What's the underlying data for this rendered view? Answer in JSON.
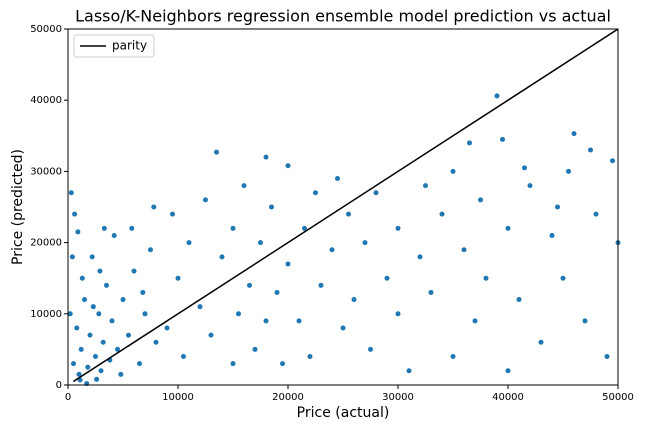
{
  "chart_data": {
    "type": "scatter",
    "title": "Lasso/K-Neighbors regression ensemble model prediction vs actual",
    "x_label": "Price (actual)",
    "y_label": "Price (predicted)",
    "xlim": [
      0,
      50000
    ],
    "ylim": [
      0,
      50000
    ],
    "xticks": [
      0,
      10000,
      20000,
      30000,
      40000,
      50000
    ],
    "yticks": [
      0,
      10000,
      20000,
      30000,
      40000,
      50000
    ],
    "legend": "upper left",
    "grid": false,
    "series": [
      {
        "type": "scatter",
        "color": "#1f77b4",
        "x": [
          500,
          800,
          1000,
          1200,
          1500,
          1800,
          2000,
          2200,
          2500,
          2800,
          3000,
          3200,
          3500,
          3800,
          4000,
          4200,
          4500,
          5000,
          5500,
          6000,
          6500,
          7000,
          7500,
          8000,
          300,
          600,
          900,
          1300,
          1700,
          2300,
          2600,
          3300,
          4800,
          5800,
          6800,
          7800,
          200,
          400,
          1100,
          2900,
          9000,
          9500,
          10000,
          10500,
          11000,
          12000,
          12500,
          13000,
          13500,
          14000,
          15000,
          15000,
          15500,
          16000,
          16500,
          17000,
          17500,
          18000,
          18000,
          18500,
          19000,
          19500,
          20000,
          20000,
          21000,
          21500,
          22000,
          22500,
          23000,
          24000,
          24500,
          25000,
          25500,
          26000,
          27000,
          27500,
          28000,
          29000,
          30000,
          30000,
          31000,
          32000,
          32500,
          33000,
          34000,
          35000,
          35000,
          36000,
          37000,
          37500,
          38000,
          39000,
          39500,
          40000,
          40000,
          41000,
          42000,
          43000,
          44000,
          45000,
          45500,
          46000,
          47000,
          48000,
          49000,
          49500,
          50000,
          47500,
          41500,
          44500,
          36500
        ],
        "values": [
          3000,
          8000,
          1500,
          5000,
          12000,
          2500,
          7000,
          18000,
          4000,
          10000,
          2000,
          6000,
          14000,
          3500,
          9000,
          21000,
          5000,
          12000,
          7000,
          16000,
          3000,
          10000,
          19000,
          6000,
          27000,
          24000,
          21500,
          15000,
          200,
          11000,
          800,
          22000,
          1500,
          22000,
          13000,
          25000,
          10000,
          18000,
          700,
          16000,
          8000,
          24000,
          15000,
          4000,
          20000,
          11000,
          26000,
          7000,
          32700,
          18000,
          3000,
          22000,
          10000,
          28000,
          14000,
          5000,
          20000,
          32000,
          9000,
          25000,
          13000,
          3000,
          17000,
          30800,
          9000,
          22000,
          4000,
          27000,
          14000,
          19000,
          29000,
          8000,
          24000,
          12000,
          20000,
          5000,
          27000,
          15000,
          22000,
          10000,
          2000,
          18000,
          28000,
          13000,
          24000,
          4000,
          30000,
          19000,
          9000,
          26000,
          15000,
          40600,
          34500,
          22000,
          2000,
          12000,
          28000,
          6000,
          21000,
          15000,
          30000,
          35300,
          9000,
          24000,
          4000,
          31500,
          20000,
          33000,
          30500,
          25000,
          34000
        ]
      },
      {
        "type": "line",
        "name": "parity",
        "color": "#000000",
        "x": [
          500,
          50000
        ],
        "values": [
          500,
          50000
        ]
      }
    ]
  }
}
